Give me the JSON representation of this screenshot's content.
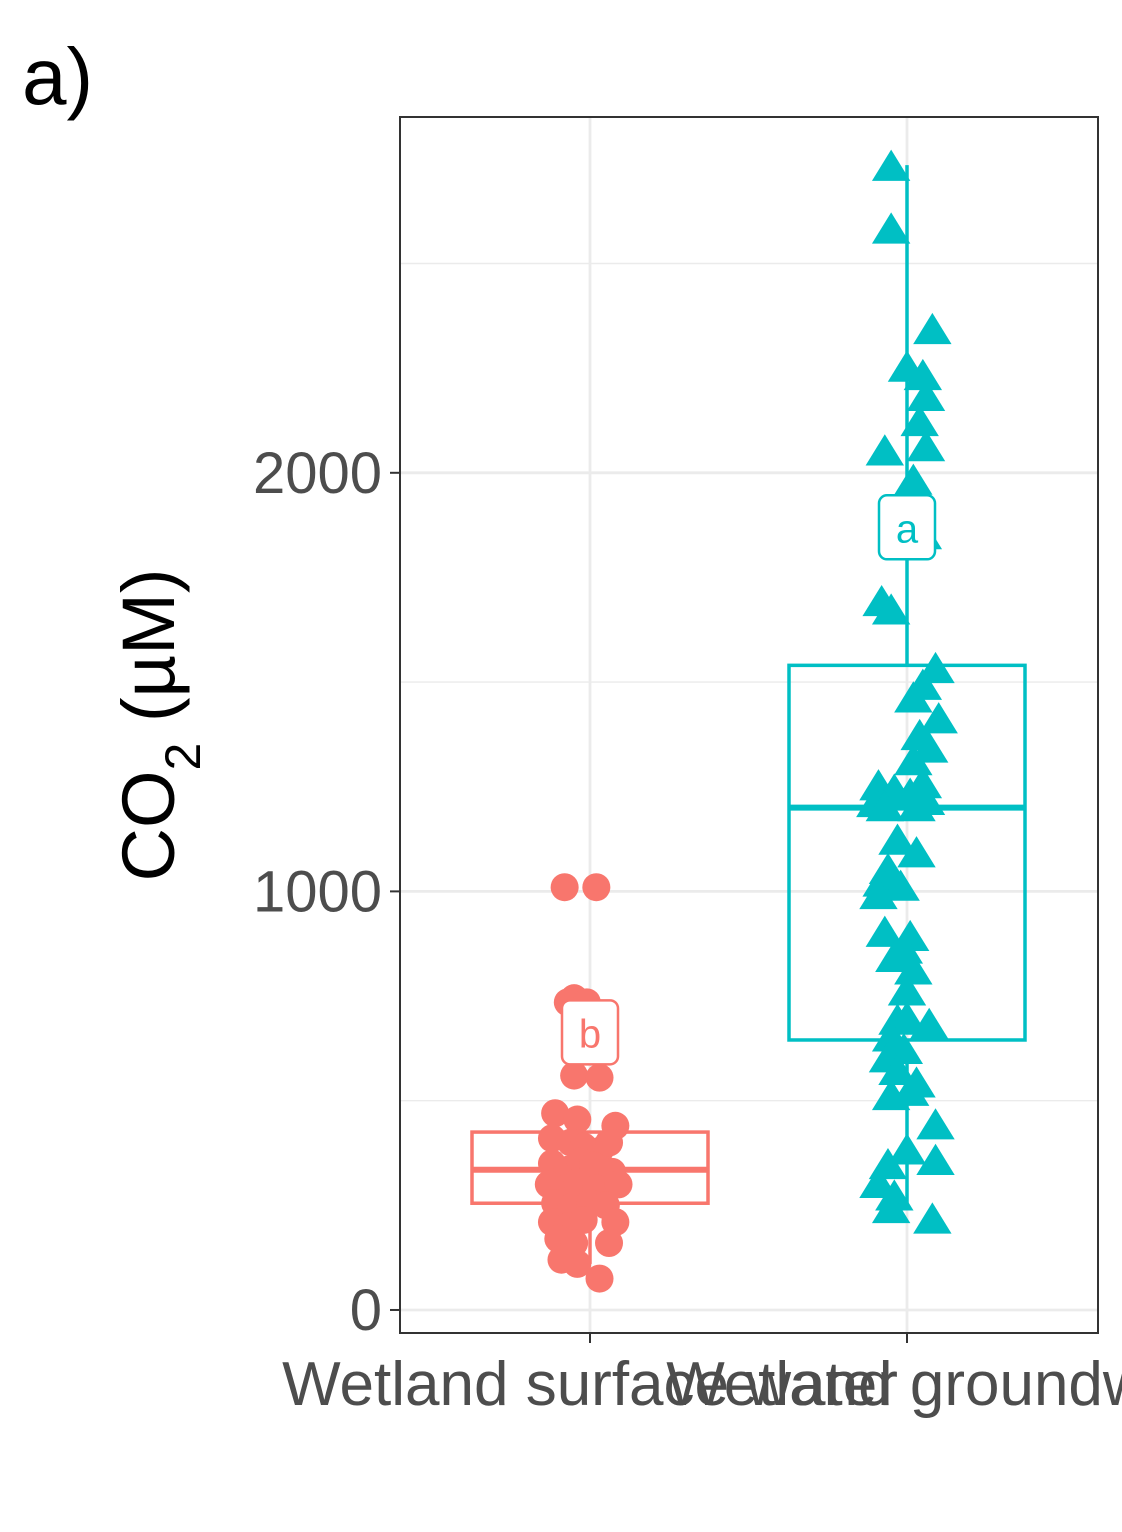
{
  "panel_label": "a)",
  "chart_data": {
    "type": "box",
    "ylabel": {
      "main": "CO",
      "sub": "2",
      "unit": " (µM)"
    },
    "xlabel": "",
    "ylim": [
      -55,
      2850
    ],
    "yticks": [
      0,
      1000,
      2000
    ],
    "grid": true,
    "legend": "none",
    "categories": [
      "Wetland surface water",
      "Wetland groundwater"
    ],
    "category_labels_visible": [
      "Wetland surface water",
      "Wetland groundw"
    ],
    "groups": [
      {
        "category": "Wetland surface water",
        "color": "#F8766D",
        "shape": "circle",
        "letter": "b",
        "box": {
          "whisker_low": 110,
          "q1": 255,
          "median": 335,
          "q3": 425,
          "whisker_high": 425
        },
        "points": [
          {
            "x": -0.08,
            "y": 1010
          },
          {
            "x": 0.02,
            "y": 1010
          },
          {
            "x": -0.07,
            "y": 735
          },
          {
            "x": -0.05,
            "y": 745
          },
          {
            "x": -0.03,
            "y": 725
          },
          {
            "x": -0.01,
            "y": 735
          },
          {
            "x": 0.03,
            "y": 675
          },
          {
            "x": -0.05,
            "y": 560
          },
          {
            "x": 0.03,
            "y": 555
          },
          {
            "x": -0.11,
            "y": 470
          },
          {
            "x": -0.04,
            "y": 455
          },
          {
            "x": 0.08,
            "y": 440
          },
          {
            "x": -0.12,
            "y": 410
          },
          {
            "x": -0.06,
            "y": 400
          },
          {
            "x": -0.02,
            "y": 390
          },
          {
            "x": 0.03,
            "y": 380
          },
          {
            "x": 0.06,
            "y": 400
          },
          {
            "x": -0.12,
            "y": 350
          },
          {
            "x": -0.07,
            "y": 335
          },
          {
            "x": -0.03,
            "y": 355
          },
          {
            "x": 0.01,
            "y": 345
          },
          {
            "x": 0.07,
            "y": 330
          },
          {
            "x": -0.13,
            "y": 300
          },
          {
            "x": -0.08,
            "y": 290
          },
          {
            "x": -0.04,
            "y": 305
          },
          {
            "x": 0.02,
            "y": 290
          },
          {
            "x": 0.09,
            "y": 300
          },
          {
            "x": -0.11,
            "y": 255
          },
          {
            "x": -0.06,
            "y": 245
          },
          {
            "x": 0.0,
            "y": 255
          },
          {
            "x": 0.05,
            "y": 250
          },
          {
            "x": -0.12,
            "y": 210
          },
          {
            "x": -0.07,
            "y": 200
          },
          {
            "x": -0.02,
            "y": 215
          },
          {
            "x": 0.08,
            "y": 210
          },
          {
            "x": -0.1,
            "y": 170
          },
          {
            "x": -0.05,
            "y": 160
          },
          {
            "x": 0.06,
            "y": 160
          },
          {
            "x": -0.09,
            "y": 120
          },
          {
            "x": -0.04,
            "y": 110
          },
          {
            "x": 0.03,
            "y": 75
          }
        ]
      },
      {
        "category": "Wetland groundwater",
        "color": "#00BFC4",
        "shape": "triangle",
        "letter": "a",
        "box": {
          "whisker_low": 245,
          "q1": 645,
          "median": 1200,
          "q3": 1540,
          "whisker_high": 2735
        },
        "points": [
          {
            "x": -0.05,
            "y": 2730
          },
          {
            "x": -0.05,
            "y": 2580
          },
          {
            "x": 0.08,
            "y": 2340
          },
          {
            "x": 0.0,
            "y": 2250
          },
          {
            "x": 0.05,
            "y": 2230
          },
          {
            "x": 0.06,
            "y": 2180
          },
          {
            "x": 0.04,
            "y": 2120
          },
          {
            "x": 0.06,
            "y": 2060
          },
          {
            "x": -0.07,
            "y": 2050
          },
          {
            "x": 0.02,
            "y": 1980
          },
          {
            "x": 0.05,
            "y": 1850
          },
          {
            "x": -0.08,
            "y": 1690
          },
          {
            "x": -0.05,
            "y": 1670
          },
          {
            "x": 0.09,
            "y": 1530
          },
          {
            "x": 0.05,
            "y": 1490
          },
          {
            "x": 0.02,
            "y": 1460
          },
          {
            "x": 0.1,
            "y": 1410
          },
          {
            "x": 0.04,
            "y": 1370
          },
          {
            "x": 0.07,
            "y": 1340
          },
          {
            "x": 0.02,
            "y": 1310
          },
          {
            "x": -0.09,
            "y": 1250
          },
          {
            "x": -0.04,
            "y": 1240
          },
          {
            "x": 0.01,
            "y": 1230
          },
          {
            "x": 0.05,
            "y": 1255
          },
          {
            "x": -0.1,
            "y": 1210
          },
          {
            "x": -0.07,
            "y": 1200
          },
          {
            "x": 0.03,
            "y": 1200
          },
          {
            "x": 0.06,
            "y": 1215
          },
          {
            "x": -0.03,
            "y": 1120
          },
          {
            "x": 0.03,
            "y": 1090
          },
          {
            "x": -0.06,
            "y": 1050
          },
          {
            "x": -0.08,
            "y": 1020
          },
          {
            "x": -0.02,
            "y": 1010
          },
          {
            "x": -0.09,
            "y": 990
          },
          {
            "x": -0.07,
            "y": 900
          },
          {
            "x": 0.01,
            "y": 890
          },
          {
            "x": -0.01,
            "y": 860
          },
          {
            "x": -0.04,
            "y": 840
          },
          {
            "x": 0.02,
            "y": 810
          },
          {
            "x": 0.0,
            "y": 760
          },
          {
            "x": -0.03,
            "y": 690
          },
          {
            "x": 0.0,
            "y": 695
          },
          {
            "x": 0.07,
            "y": 680
          },
          {
            "x": -0.05,
            "y": 650
          },
          {
            "x": -0.01,
            "y": 620
          },
          {
            "x": -0.06,
            "y": 600
          },
          {
            "x": -0.03,
            "y": 570
          },
          {
            "x": 0.03,
            "y": 540
          },
          {
            "x": -0.05,
            "y": 510
          },
          {
            "x": 0.01,
            "y": 520
          },
          {
            "x": 0.09,
            "y": 440
          },
          {
            "x": 0.0,
            "y": 380
          },
          {
            "x": -0.06,
            "y": 345
          },
          {
            "x": 0.09,
            "y": 355
          },
          {
            "x": -0.09,
            "y": 300
          },
          {
            "x": -0.04,
            "y": 270
          },
          {
            "x": -0.05,
            "y": 240
          },
          {
            "x": 0.08,
            "y": 215
          }
        ]
      }
    ]
  }
}
